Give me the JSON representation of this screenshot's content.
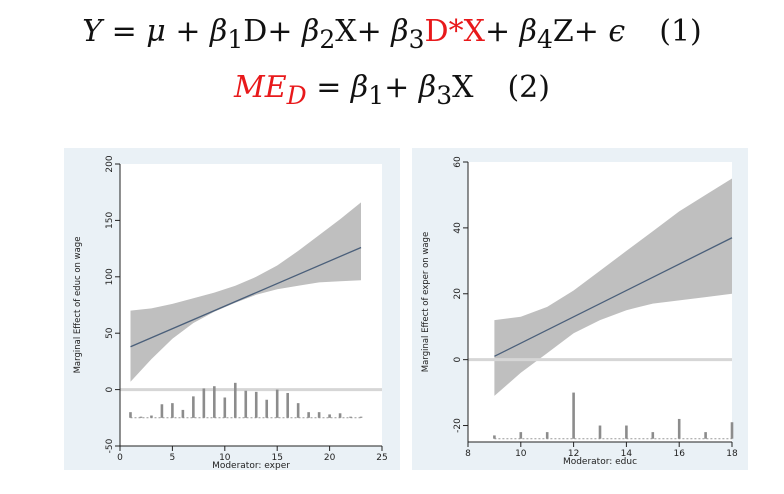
{
  "equations": {
    "eq1": {
      "lhs": "Y",
      "eq": " = ",
      "mu": "μ",
      "t1": " + ",
      "b1": "β",
      "b1sub": "1",
      "D": "D+ ",
      "b2": "β",
      "b2sub": "2",
      "X": "X+ ",
      "b3": "β",
      "b3sub": "3",
      "DX": "D*X",
      "plus": "+ ",
      "b4": "β",
      "b4sub": "4",
      "Z": "Z+ ",
      "eps": "ϵ",
      "num": "(1)"
    },
    "eq2": {
      "ME": "ME",
      "MEsub": "D",
      "eq": " = ",
      "b1": "β",
      "b1sub": "1",
      "plus": "+ ",
      "b3": "β",
      "b3sub": "3",
      "X": "X",
      "num": "(2)"
    }
  },
  "chart_data": [
    {
      "type": "line",
      "xlabel": "Moderator: exper",
      "ylabel": "Marginal Effect of educ on wage",
      "xlim": [
        0,
        25
      ],
      "ylim": [
        -50,
        200
      ],
      "xticks": [
        0,
        5,
        10,
        15,
        20,
        25
      ],
      "yticks": [
        -50,
        0,
        50,
        100,
        150,
        200
      ],
      "line": {
        "x": [
          1,
          23
        ],
        "y": [
          38,
          126
        ]
      },
      "ci_band": {
        "x": [
          1,
          3,
          5,
          7,
          9,
          11,
          13,
          15,
          17,
          19,
          21,
          23
        ],
        "upper": [
          70,
          72,
          76,
          81,
          86,
          92,
          100,
          110,
          123,
          137,
          151,
          166
        ],
        "lower": [
          7,
          27,
          45,
          59,
          69,
          77,
          84,
          89,
          92,
          95,
          96,
          97
        ]
      },
      "zero_line": 0,
      "histogram": {
        "baseline": -25,
        "x": [
          1,
          2,
          3,
          4,
          5,
          6,
          7,
          8,
          9,
          10,
          11,
          12,
          13,
          14,
          15,
          16,
          17,
          18,
          19,
          20,
          21,
          22,
          23
        ],
        "heights": [
          -20,
          -24,
          -23,
          -13,
          -12,
          -18,
          -6,
          1,
          3,
          -7,
          6,
          -1,
          -2,
          -9,
          0,
          -3,
          -12,
          -20,
          -20,
          -22,
          -21,
          -24,
          -24
        ]
      }
    },
    {
      "type": "line",
      "xlabel": "Moderator: educ",
      "ylabel": "Marginal Effect of exper on wage",
      "xlim": [
        8,
        18
      ],
      "ylim": [
        -25,
        60
      ],
      "xticks": [
        8,
        10,
        12,
        14,
        16,
        18
      ],
      "yticks": [
        -20,
        0,
        20,
        40,
        60
      ],
      "line": {
        "x": [
          9,
          18
        ],
        "y": [
          1,
          37
        ]
      },
      "ci_band": {
        "x": [
          9,
          10,
          11,
          12,
          13,
          14,
          15,
          16,
          17,
          18
        ],
        "upper": [
          12,
          13,
          16,
          21,
          27,
          33,
          39,
          45,
          50,
          55
        ],
        "lower": [
          -11,
          -4,
          2,
          8,
          12,
          15,
          17,
          18,
          19,
          20
        ]
      },
      "zero_line": 0,
      "histogram": {
        "baseline": -24,
        "x": [
          9,
          10,
          11,
          12,
          13,
          14,
          15,
          16,
          17,
          18
        ],
        "heights": [
          -23,
          -22,
          -22,
          -10,
          -20,
          -20,
          -22,
          -18,
          -22,
          -19
        ]
      }
    }
  ]
}
